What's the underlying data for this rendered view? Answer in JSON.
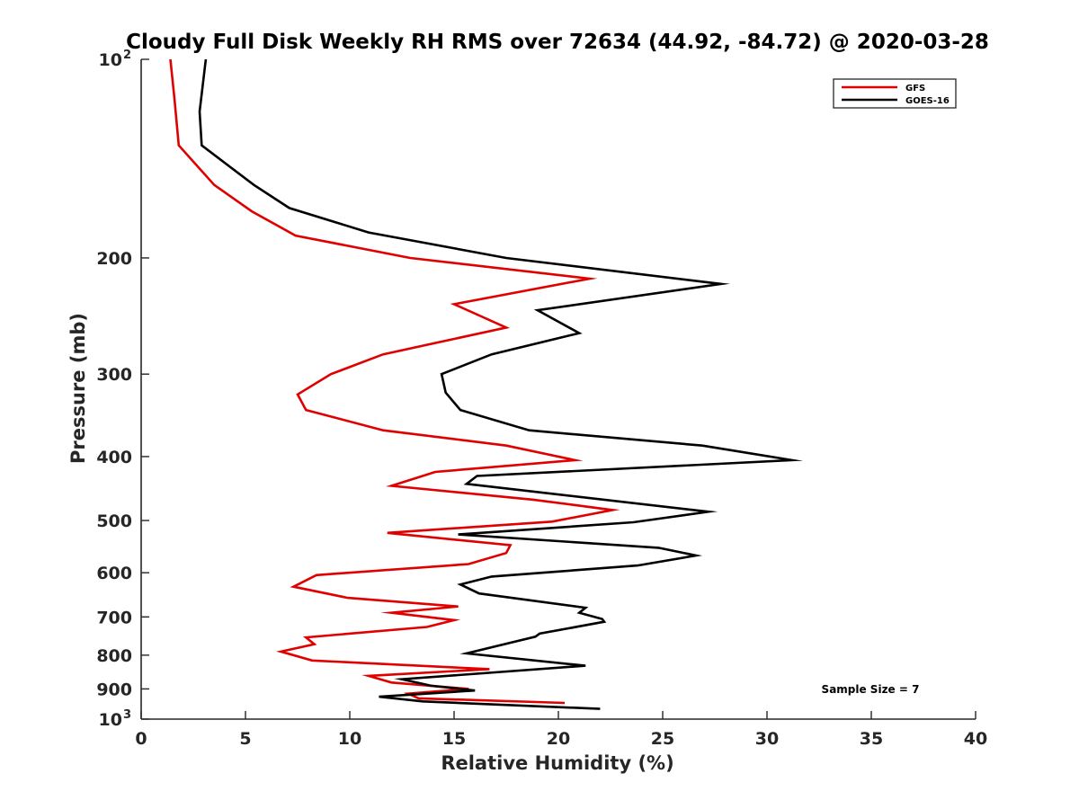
{
  "chart_data": {
    "type": "line",
    "title": "Cloudy Full Disk Weekly RH RMS over 72634 (44.92, -84.72) @ 2020-03-28",
    "xlabel": "Relative Humidity (%)",
    "ylabel": "Pressure (mb)",
    "xlim": [
      0,
      40
    ],
    "ylim": [
      100,
      1000
    ],
    "y_scale": "log",
    "y_reversed": true,
    "grid": false,
    "legend_position": "top-right",
    "x_ticks": [
      "0",
      "5",
      "10",
      "15",
      "20",
      "25",
      "30",
      "35",
      "40"
    ],
    "y_ticks": [
      {
        "value": 100,
        "label": "10",
        "sup": "2"
      },
      {
        "value": 200,
        "label": "200"
      },
      {
        "value": 300,
        "label": "300"
      },
      {
        "value": 400,
        "label": "400"
      },
      {
        "value": 500,
        "label": "500"
      },
      {
        "value": 600,
        "label": "600"
      },
      {
        "value": 700,
        "label": "700"
      },
      {
        "value": 800,
        "label": "800"
      },
      {
        "value": 900,
        "label": "900"
      },
      {
        "value": 1000,
        "label": "10",
        "sup": "3"
      }
    ],
    "annotation": "Sample Size = 7",
    "series": [
      {
        "name": "GFS",
        "color": "#e00000",
        "points": [
          [
            1.4,
            100
          ],
          [
            1.6,
            115
          ],
          [
            1.8,
            135
          ],
          [
            3.5,
            155
          ],
          [
            5.3,
            170
          ],
          [
            7.4,
            185
          ],
          [
            12.9,
            200
          ],
          [
            21.5,
            215
          ],
          [
            15.0,
            235
          ],
          [
            17.5,
            255
          ],
          [
            11.6,
            280
          ],
          [
            9.1,
            300
          ],
          [
            7.5,
            322
          ],
          [
            7.9,
            340
          ],
          [
            11.6,
            365
          ],
          [
            17.5,
            385
          ],
          [
            20.8,
            405
          ],
          [
            14.1,
            422
          ],
          [
            12.0,
            443
          ],
          [
            18.8,
            465
          ],
          [
            22.6,
            482
          ],
          [
            19.7,
            502
          ],
          [
            11.8,
            522
          ],
          [
            17.7,
            545
          ],
          [
            17.5,
            560
          ],
          [
            15.7,
            582
          ],
          [
            8.4,
            605
          ],
          [
            7.3,
            630
          ],
          [
            9.9,
            655
          ],
          [
            15.2,
            675
          ],
          [
            12.0,
            690
          ],
          [
            15.0,
            708
          ],
          [
            13.7,
            725
          ],
          [
            7.9,
            752
          ],
          [
            8.3,
            770
          ],
          [
            6.7,
            790
          ],
          [
            8.2,
            815
          ],
          [
            16.7,
            840
          ],
          [
            10.9,
            860
          ],
          [
            12.0,
            880
          ],
          [
            15.7,
            900
          ],
          [
            12.8,
            915
          ],
          [
            13.3,
            930
          ],
          [
            20.3,
            945
          ]
        ]
      },
      {
        "name": "GOES-16",
        "color": "#000000",
        "points": [
          [
            3.1,
            100
          ],
          [
            2.8,
            120
          ],
          [
            2.9,
            135
          ],
          [
            5.4,
            155
          ],
          [
            7.1,
            168
          ],
          [
            10.9,
            183
          ],
          [
            17.5,
            200
          ],
          [
            27.8,
            219
          ],
          [
            19.0,
            240
          ],
          [
            21.0,
            260
          ],
          [
            16.8,
            280
          ],
          [
            14.4,
            300
          ],
          [
            14.6,
            320
          ],
          [
            15.3,
            340
          ],
          [
            18.6,
            365
          ],
          [
            26.9,
            385
          ],
          [
            31.2,
            405
          ],
          [
            16.1,
            428
          ],
          [
            15.6,
            440
          ],
          [
            27.2,
            485
          ],
          [
            23.6,
            503
          ],
          [
            15.2,
            525
          ],
          [
            24.8,
            550
          ],
          [
            26.6,
            565
          ],
          [
            23.8,
            585
          ],
          [
            16.8,
            608
          ],
          [
            15.3,
            625
          ],
          [
            16.2,
            645
          ],
          [
            21.3,
            678
          ],
          [
            21.0,
            690
          ],
          [
            22.1,
            705
          ],
          [
            22.2,
            712
          ],
          [
            19.1,
            742
          ],
          [
            18.9,
            750
          ],
          [
            15.6,
            795
          ],
          [
            21.3,
            830
          ],
          [
            12.5,
            870
          ],
          [
            13.9,
            890
          ],
          [
            16.0,
            905
          ],
          [
            11.4,
            925
          ],
          [
            13.5,
            940
          ],
          [
            22.0,
            965
          ]
        ]
      }
    ]
  }
}
